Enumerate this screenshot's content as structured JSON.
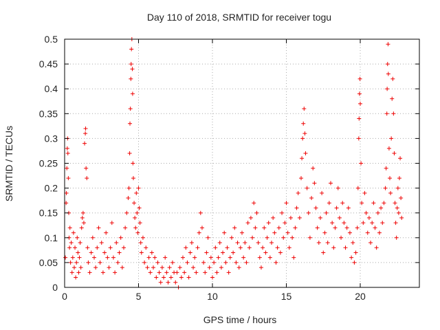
{
  "chart_data": {
    "type": "scatter",
    "title": "Day 110 of 2018, SRMTID for receiver togu",
    "xlabel": "GPS time / hours",
    "ylabel": "SRMTID / TECUs",
    "xlim": [
      0,
      24
    ],
    "ylim": [
      0,
      0.5
    ],
    "x_ticks": [
      0,
      5,
      10,
      15,
      20
    ],
    "x_tick_labels": [
      "0",
      "5",
      "10",
      "15",
      "20"
    ],
    "y_ticks": [
      0,
      0.05,
      0.1,
      0.15,
      0.2,
      0.25,
      0.3,
      0.35,
      0.4,
      0.45,
      0.5
    ],
    "y_tick_labels": [
      "0",
      "0.05",
      "0.1",
      "0.15",
      "0.2",
      "0.25",
      "0.3",
      "0.35",
      "0.4",
      "0.45",
      "0.5"
    ],
    "grid": true,
    "marker": "plus",
    "color": "#ee0000",
    "series": [
      {
        "name": "SRMTID",
        "points": [
          [
            0.05,
            0.06
          ],
          [
            0.1,
            0.17
          ],
          [
            0.12,
            0.19
          ],
          [
            0.15,
            0.24
          ],
          [
            0.18,
            0.28
          ],
          [
            0.2,
            0.3
          ],
          [
            0.22,
            0.27
          ],
          [
            0.25,
            0.22
          ],
          [
            0.28,
            0.15
          ],
          [
            0.3,
            0.1
          ],
          [
            0.33,
            0.08
          ],
          [
            0.36,
            0.12
          ],
          [
            0.4,
            0.05
          ],
          [
            0.45,
            0.09
          ],
          [
            0.5,
            0.03
          ],
          [
            0.55,
            0.06
          ],
          [
            0.6,
            0.11
          ],
          [
            0.65,
            0.04
          ],
          [
            0.7,
            0.08
          ],
          [
            0.75,
            0.02
          ],
          [
            0.8,
            0.05
          ],
          [
            0.85,
            0.1
          ],
          [
            0.9,
            0.07
          ],
          [
            0.95,
            0.03
          ],
          [
            1.0,
            0.06
          ],
          [
            1.05,
            0.09
          ],
          [
            1.1,
            0.04
          ],
          [
            1.15,
            0.12
          ],
          [
            1.2,
            0.14
          ],
          [
            1.25,
            0.15
          ],
          [
            1.3,
            0.13
          ],
          [
            1.35,
            0.29
          ],
          [
            1.4,
            0.31
          ],
          [
            1.42,
            0.32
          ],
          [
            1.45,
            0.24
          ],
          [
            1.5,
            0.22
          ],
          [
            1.55,
            0.08
          ],
          [
            1.6,
            0.05
          ],
          [
            1.7,
            0.03
          ],
          [
            1.8,
            0.07
          ],
          [
            1.9,
            0.1
          ],
          [
            2.0,
            0.06
          ],
          [
            2.1,
            0.04
          ],
          [
            2.2,
            0.08
          ],
          [
            2.3,
            0.12
          ],
          [
            2.4,
            0.05
          ],
          [
            2.5,
            0.09
          ],
          [
            2.6,
            0.03
          ],
          [
            2.7,
            0.07
          ],
          [
            2.8,
            0.11
          ],
          [
            2.9,
            0.06
          ],
          [
            3.0,
            0.04
          ],
          [
            3.1,
            0.08
          ],
          [
            3.2,
            0.13
          ],
          [
            3.3,
            0.06
          ],
          [
            3.4,
            0.03
          ],
          [
            3.5,
            0.09
          ],
          [
            3.6,
            0.05
          ],
          [
            3.7,
            0.07
          ],
          [
            3.8,
            0.1
          ],
          [
            3.9,
            0.04
          ],
          [
            4.0,
            0.08
          ],
          [
            4.1,
            0.12
          ],
          [
            4.2,
            0.15
          ],
          [
            4.3,
            0.18
          ],
          [
            4.35,
            0.2
          ],
          [
            4.4,
            0.27
          ],
          [
            4.42,
            0.33
          ],
          [
            4.45,
            0.36
          ],
          [
            4.48,
            0.42
          ],
          [
            4.5,
            0.45
          ],
          [
            4.52,
            0.48
          ],
          [
            4.55,
            0.5
          ],
          [
            4.58,
            0.44
          ],
          [
            4.6,
            0.39
          ],
          [
            4.62,
            0.25
          ],
          [
            4.65,
            0.22
          ],
          [
            4.7,
            0.17
          ],
          [
            4.75,
            0.14
          ],
          [
            4.8,
            0.12
          ],
          [
            4.85,
            0.19
          ],
          [
            4.9,
            0.15
          ],
          [
            4.95,
            0.11
          ],
          [
            5.0,
            0.2
          ],
          [
            5.05,
            0.16
          ],
          [
            5.1,
            0.13
          ],
          [
            5.15,
            0.09
          ],
          [
            5.2,
            0.07
          ],
          [
            5.3,
            0.1
          ],
          [
            5.4,
            0.05
          ],
          [
            5.5,
            0.08
          ],
          [
            5.6,
            0.04
          ],
          [
            5.7,
            0.06
          ],
          [
            5.8,
            0.03
          ],
          [
            5.9,
            0.07
          ],
          [
            6.0,
            0.04
          ],
          [
            6.1,
            0.06
          ],
          [
            6.2,
            0.02
          ],
          [
            6.3,
            0.05
          ],
          [
            6.4,
            0.03
          ],
          [
            6.5,
            0.01
          ],
          [
            6.6,
            0.04
          ],
          [
            6.7,
            0.02
          ],
          [
            6.8,
            0.06
          ],
          [
            6.9,
            0.03
          ],
          [
            7.0,
            0.01
          ],
          [
            7.1,
            0.04
          ],
          [
            7.2,
            0.02
          ],
          [
            7.3,
            0.05
          ],
          [
            7.4,
            0.03
          ],
          [
            7.5,
            0.01
          ],
          [
            7.6,
            0.03
          ],
          [
            7.7,
            0.0
          ],
          [
            7.8,
            0.04
          ],
          [
            7.9,
            0.02
          ],
          [
            8.0,
            0.06
          ],
          [
            8.1,
            0.03
          ],
          [
            8.2,
            0.08
          ],
          [
            8.3,
            0.05
          ],
          [
            8.4,
            0.02
          ],
          [
            8.5,
            0.07
          ],
          [
            8.6,
            0.09
          ],
          [
            8.7,
            0.04
          ],
          [
            8.8,
            0.06
          ],
          [
            8.9,
            0.03
          ],
          [
            9.0,
            0.08
          ],
          [
            9.1,
            0.11
          ],
          [
            9.2,
            0.15
          ],
          [
            9.3,
            0.12
          ],
          [
            9.4,
            0.05
          ],
          [
            9.5,
            0.03
          ],
          [
            9.6,
            0.07
          ],
          [
            9.7,
            0.1
          ],
          [
            9.8,
            0.04
          ],
          [
            9.9,
            0.06
          ],
          [
            10.0,
            0.02
          ],
          [
            10.1,
            0.05
          ],
          [
            10.2,
            0.08
          ],
          [
            10.3,
            0.03
          ],
          [
            10.4,
            0.06
          ],
          [
            10.5,
            0.09
          ],
          [
            10.6,
            0.04
          ],
          [
            10.7,
            0.07
          ],
          [
            10.8,
            0.11
          ],
          [
            10.9,
            0.05
          ],
          [
            11.0,
            0.08
          ],
          [
            11.1,
            0.03
          ],
          [
            11.2,
            0.06
          ],
          [
            11.3,
            0.1
          ],
          [
            11.4,
            0.07
          ],
          [
            11.5,
            0.12
          ],
          [
            11.6,
            0.05
          ],
          [
            11.7,
            0.09
          ],
          [
            11.8,
            0.04
          ],
          [
            11.9,
            0.08
          ],
          [
            12.0,
            0.11
          ],
          [
            12.1,
            0.06
          ],
          [
            12.2,
            0.09
          ],
          [
            12.3,
            0.05
          ],
          [
            12.4,
            0.13
          ],
          [
            12.5,
            0.08
          ],
          [
            12.6,
            0.14
          ],
          [
            12.7,
            0.1
          ],
          [
            12.8,
            0.17
          ],
          [
            12.9,
            0.12
          ],
          [
            13.0,
            0.15
          ],
          [
            13.1,
            0.09
          ],
          [
            13.2,
            0.06
          ],
          [
            13.3,
            0.04
          ],
          [
            13.4,
            0.08
          ],
          [
            13.5,
            0.12
          ],
          [
            13.6,
            0.07
          ],
          [
            13.7,
            0.1
          ],
          [
            13.8,
            0.13
          ],
          [
            13.9,
            0.06
          ],
          [
            14.0,
            0.09
          ],
          [
            14.1,
            0.14
          ],
          [
            14.2,
            0.11
          ],
          [
            14.3,
            0.05
          ],
          [
            14.4,
            0.08
          ],
          [
            14.5,
            0.12
          ],
          [
            14.6,
            0.07
          ],
          [
            14.7,
            0.15
          ],
          [
            14.8,
            0.1
          ],
          [
            14.9,
            0.13
          ],
          [
            15.0,
            0.17
          ],
          [
            15.1,
            0.11
          ],
          [
            15.2,
            0.08
          ],
          [
            15.3,
            0.14
          ],
          [
            15.4,
            0.1
          ],
          [
            15.5,
            0.06
          ],
          [
            15.6,
            0.12
          ],
          [
            15.7,
            0.16
          ],
          [
            15.8,
            0.19
          ],
          [
            15.9,
            0.14
          ],
          [
            16.0,
            0.22
          ],
          [
            16.05,
            0.26
          ],
          [
            16.1,
            0.3
          ],
          [
            16.15,
            0.33
          ],
          [
            16.2,
            0.36
          ],
          [
            16.25,
            0.31
          ],
          [
            16.3,
            0.27
          ],
          [
            16.4,
            0.2
          ],
          [
            16.5,
            0.15
          ],
          [
            16.6,
            0.1
          ],
          [
            16.7,
            0.18
          ],
          [
            16.8,
            0.24
          ],
          [
            16.9,
            0.21
          ],
          [
            17.0,
            0.16
          ],
          [
            17.1,
            0.12
          ],
          [
            17.2,
            0.09
          ],
          [
            17.3,
            0.14
          ],
          [
            17.4,
            0.19
          ],
          [
            17.5,
            0.07
          ],
          [
            17.6,
            0.11
          ],
          [
            17.7,
            0.15
          ],
          [
            17.8,
            0.09
          ],
          [
            17.9,
            0.17
          ],
          [
            18.0,
            0.21
          ],
          [
            18.1,
            0.13
          ],
          [
            18.2,
            0.08
          ],
          [
            18.3,
            0.12
          ],
          [
            18.4,
            0.16
          ],
          [
            18.5,
            0.2
          ],
          [
            18.6,
            0.14
          ],
          [
            18.7,
            0.1
          ],
          [
            18.8,
            0.17
          ],
          [
            18.9,
            0.13
          ],
          [
            19.0,
            0.08
          ],
          [
            19.1,
            0.12
          ],
          [
            19.2,
            0.16
          ],
          [
            19.3,
            0.11
          ],
          [
            19.4,
            0.06
          ],
          [
            19.5,
            0.09
          ],
          [
            19.6,
            0.05
          ],
          [
            19.7,
            0.07
          ],
          [
            19.8,
            0.12
          ],
          [
            19.85,
            0.2
          ],
          [
            19.9,
            0.3
          ],
          [
            19.92,
            0.34
          ],
          [
            19.95,
            0.39
          ],
          [
            19.98,
            0.42
          ],
          [
            20.0,
            0.37
          ],
          [
            20.05,
            0.25
          ],
          [
            20.1,
            0.17
          ],
          [
            20.2,
            0.13
          ],
          [
            20.3,
            0.19
          ],
          [
            20.4,
            0.15
          ],
          [
            20.5,
            0.11
          ],
          [
            20.6,
            0.14
          ],
          [
            20.7,
            0.09
          ],
          [
            20.8,
            0.13
          ],
          [
            20.9,
            0.17
          ],
          [
            21.0,
            0.12
          ],
          [
            21.1,
            0.08
          ],
          [
            21.2,
            0.15
          ],
          [
            21.3,
            0.11
          ],
          [
            21.4,
            0.16
          ],
          [
            21.5,
            0.13
          ],
          [
            21.6,
            0.17
          ],
          [
            21.7,
            0.2
          ],
          [
            21.75,
            0.24
          ],
          [
            21.8,
            0.35
          ],
          [
            21.82,
            0.4
          ],
          [
            21.85,
            0.45
          ],
          [
            21.88,
            0.49
          ],
          [
            21.9,
            0.43
          ],
          [
            21.95,
            0.28
          ],
          [
            22.0,
            0.22
          ],
          [
            22.05,
            0.19
          ],
          [
            22.1,
            0.3
          ],
          [
            22.15,
            0.38
          ],
          [
            22.2,
            0.42
          ],
          [
            22.25,
            0.35
          ],
          [
            22.3,
            0.27
          ],
          [
            22.35,
            0.17
          ],
          [
            22.4,
            0.13
          ],
          [
            22.45,
            0.1
          ],
          [
            22.5,
            0.16
          ],
          [
            22.55,
            0.2
          ],
          [
            22.6,
            0.15
          ],
          [
            22.65,
            0.22
          ],
          [
            22.7,
            0.26
          ],
          [
            22.75,
            0.18
          ],
          [
            22.8,
            0.14
          ]
        ]
      }
    ]
  }
}
